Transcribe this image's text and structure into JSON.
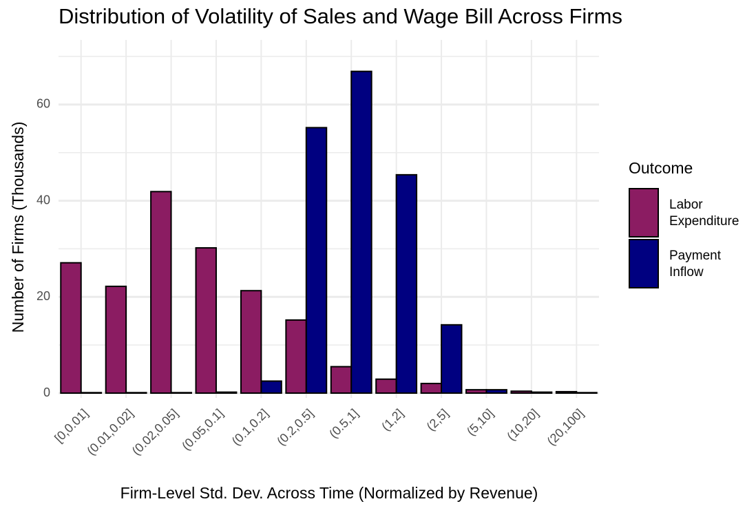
{
  "chart_data": {
    "type": "bar",
    "title": "Distribution of Volatility of Sales and Wage Bill Across Firms",
    "x_label": "Firm-Level Std. Dev. Across Time (Normalized by Revenue)",
    "y_label": "Number of Firms (Thousands)",
    "legend_title": "Outcome",
    "categories": [
      "[0,0.01]",
      "(0.01,0.02]",
      "(0.02,0.05]",
      "(0.05,0.1]",
      "(0.1,0.2]",
      "(0.2,0.5]",
      "(0.5,1]",
      "(1,2]",
      "(2,5]",
      "(5,10]",
      "(10,20]",
      "(20,100]"
    ],
    "series": [
      {
        "name": "Labor Expenditure",
        "color": "#8b1c62",
        "values": [
          27.1,
          22.2,
          41.9,
          30.2,
          21.3,
          15.2,
          5.5,
          2.9,
          2.0,
          0.7,
          0.4,
          0.3
        ]
      },
      {
        "name": "Payment Inflow",
        "color": "#000080",
        "values": [
          0.1,
          0.1,
          0.1,
          0.2,
          2.5,
          55.2,
          66.9,
          45.4,
          14.2,
          0.7,
          0.2,
          0.1
        ]
      }
    ],
    "ylim": [
      -1,
      70
    ],
    "yticks": [
      0,
      20,
      40,
      60
    ],
    "minor_yticks": [
      10,
      30,
      50,
      70
    ],
    "grid": true,
    "legend": "right"
  }
}
